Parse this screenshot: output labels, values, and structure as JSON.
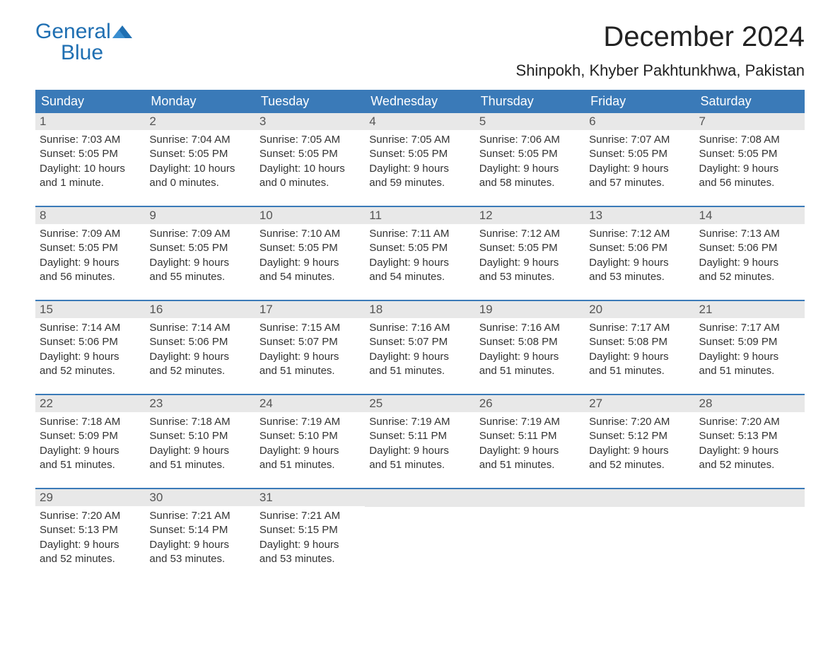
{
  "logo": {
    "text1": "General",
    "text2": "Blue",
    "accent_color": "#1f6fb2"
  },
  "title": "December 2024",
  "location": "Shinpokh, Khyber Pakhtunkhwa, Pakistan",
  "colors": {
    "header_bg": "#3a7ab8",
    "header_text": "#ffffff",
    "daynum_bg": "#e8e8e8",
    "week_border": "#3a7ab8",
    "body_text": "#333333",
    "background": "#ffffff"
  },
  "typography": {
    "title_fontsize": 40,
    "location_fontsize": 22,
    "header_fontsize": 18,
    "daynum_fontsize": 17,
    "body_fontsize": 15
  },
  "day_headers": [
    "Sunday",
    "Monday",
    "Tuesday",
    "Wednesday",
    "Thursday",
    "Friday",
    "Saturday"
  ],
  "weeks": [
    [
      {
        "num": "1",
        "sunrise": "Sunrise: 7:03 AM",
        "sunset": "Sunset: 5:05 PM",
        "dl1": "Daylight: 10 hours",
        "dl2": "and 1 minute."
      },
      {
        "num": "2",
        "sunrise": "Sunrise: 7:04 AM",
        "sunset": "Sunset: 5:05 PM",
        "dl1": "Daylight: 10 hours",
        "dl2": "and 0 minutes."
      },
      {
        "num": "3",
        "sunrise": "Sunrise: 7:05 AM",
        "sunset": "Sunset: 5:05 PM",
        "dl1": "Daylight: 10 hours",
        "dl2": "and 0 minutes."
      },
      {
        "num": "4",
        "sunrise": "Sunrise: 7:05 AM",
        "sunset": "Sunset: 5:05 PM",
        "dl1": "Daylight: 9 hours",
        "dl2": "and 59 minutes."
      },
      {
        "num": "5",
        "sunrise": "Sunrise: 7:06 AM",
        "sunset": "Sunset: 5:05 PM",
        "dl1": "Daylight: 9 hours",
        "dl2": "and 58 minutes."
      },
      {
        "num": "6",
        "sunrise": "Sunrise: 7:07 AM",
        "sunset": "Sunset: 5:05 PM",
        "dl1": "Daylight: 9 hours",
        "dl2": "and 57 minutes."
      },
      {
        "num": "7",
        "sunrise": "Sunrise: 7:08 AM",
        "sunset": "Sunset: 5:05 PM",
        "dl1": "Daylight: 9 hours",
        "dl2": "and 56 minutes."
      }
    ],
    [
      {
        "num": "8",
        "sunrise": "Sunrise: 7:09 AM",
        "sunset": "Sunset: 5:05 PM",
        "dl1": "Daylight: 9 hours",
        "dl2": "and 56 minutes."
      },
      {
        "num": "9",
        "sunrise": "Sunrise: 7:09 AM",
        "sunset": "Sunset: 5:05 PM",
        "dl1": "Daylight: 9 hours",
        "dl2": "and 55 minutes."
      },
      {
        "num": "10",
        "sunrise": "Sunrise: 7:10 AM",
        "sunset": "Sunset: 5:05 PM",
        "dl1": "Daylight: 9 hours",
        "dl2": "and 54 minutes."
      },
      {
        "num": "11",
        "sunrise": "Sunrise: 7:11 AM",
        "sunset": "Sunset: 5:05 PM",
        "dl1": "Daylight: 9 hours",
        "dl2": "and 54 minutes."
      },
      {
        "num": "12",
        "sunrise": "Sunrise: 7:12 AM",
        "sunset": "Sunset: 5:05 PM",
        "dl1": "Daylight: 9 hours",
        "dl2": "and 53 minutes."
      },
      {
        "num": "13",
        "sunrise": "Sunrise: 7:12 AM",
        "sunset": "Sunset: 5:06 PM",
        "dl1": "Daylight: 9 hours",
        "dl2": "and 53 minutes."
      },
      {
        "num": "14",
        "sunrise": "Sunrise: 7:13 AM",
        "sunset": "Sunset: 5:06 PM",
        "dl1": "Daylight: 9 hours",
        "dl2": "and 52 minutes."
      }
    ],
    [
      {
        "num": "15",
        "sunrise": "Sunrise: 7:14 AM",
        "sunset": "Sunset: 5:06 PM",
        "dl1": "Daylight: 9 hours",
        "dl2": "and 52 minutes."
      },
      {
        "num": "16",
        "sunrise": "Sunrise: 7:14 AM",
        "sunset": "Sunset: 5:06 PM",
        "dl1": "Daylight: 9 hours",
        "dl2": "and 52 minutes."
      },
      {
        "num": "17",
        "sunrise": "Sunrise: 7:15 AM",
        "sunset": "Sunset: 5:07 PM",
        "dl1": "Daylight: 9 hours",
        "dl2": "and 51 minutes."
      },
      {
        "num": "18",
        "sunrise": "Sunrise: 7:16 AM",
        "sunset": "Sunset: 5:07 PM",
        "dl1": "Daylight: 9 hours",
        "dl2": "and 51 minutes."
      },
      {
        "num": "19",
        "sunrise": "Sunrise: 7:16 AM",
        "sunset": "Sunset: 5:08 PM",
        "dl1": "Daylight: 9 hours",
        "dl2": "and 51 minutes."
      },
      {
        "num": "20",
        "sunrise": "Sunrise: 7:17 AM",
        "sunset": "Sunset: 5:08 PM",
        "dl1": "Daylight: 9 hours",
        "dl2": "and 51 minutes."
      },
      {
        "num": "21",
        "sunrise": "Sunrise: 7:17 AM",
        "sunset": "Sunset: 5:09 PM",
        "dl1": "Daylight: 9 hours",
        "dl2": "and 51 minutes."
      }
    ],
    [
      {
        "num": "22",
        "sunrise": "Sunrise: 7:18 AM",
        "sunset": "Sunset: 5:09 PM",
        "dl1": "Daylight: 9 hours",
        "dl2": "and 51 minutes."
      },
      {
        "num": "23",
        "sunrise": "Sunrise: 7:18 AM",
        "sunset": "Sunset: 5:10 PM",
        "dl1": "Daylight: 9 hours",
        "dl2": "and 51 minutes."
      },
      {
        "num": "24",
        "sunrise": "Sunrise: 7:19 AM",
        "sunset": "Sunset: 5:10 PM",
        "dl1": "Daylight: 9 hours",
        "dl2": "and 51 minutes."
      },
      {
        "num": "25",
        "sunrise": "Sunrise: 7:19 AM",
        "sunset": "Sunset: 5:11 PM",
        "dl1": "Daylight: 9 hours",
        "dl2": "and 51 minutes."
      },
      {
        "num": "26",
        "sunrise": "Sunrise: 7:19 AM",
        "sunset": "Sunset: 5:11 PM",
        "dl1": "Daylight: 9 hours",
        "dl2": "and 51 minutes."
      },
      {
        "num": "27",
        "sunrise": "Sunrise: 7:20 AM",
        "sunset": "Sunset: 5:12 PM",
        "dl1": "Daylight: 9 hours",
        "dl2": "and 52 minutes."
      },
      {
        "num": "28",
        "sunrise": "Sunrise: 7:20 AM",
        "sunset": "Sunset: 5:13 PM",
        "dl1": "Daylight: 9 hours",
        "dl2": "and 52 minutes."
      }
    ],
    [
      {
        "num": "29",
        "sunrise": "Sunrise: 7:20 AM",
        "sunset": "Sunset: 5:13 PM",
        "dl1": "Daylight: 9 hours",
        "dl2": "and 52 minutes."
      },
      {
        "num": "30",
        "sunrise": "Sunrise: 7:21 AM",
        "sunset": "Sunset: 5:14 PM",
        "dl1": "Daylight: 9 hours",
        "dl2": "and 53 minutes."
      },
      {
        "num": "31",
        "sunrise": "Sunrise: 7:21 AM",
        "sunset": "Sunset: 5:15 PM",
        "dl1": "Daylight: 9 hours",
        "dl2": "and 53 minutes."
      },
      null,
      null,
      null,
      null
    ]
  ]
}
